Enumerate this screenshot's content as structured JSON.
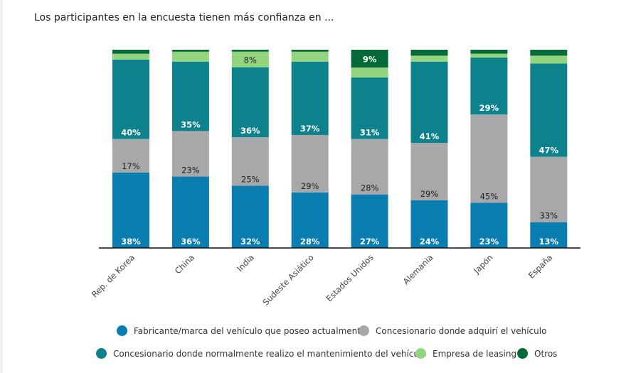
{
  "chart_data": {
    "type": "bar",
    "stacked": true,
    "title": "Los participantes en la encuesta tienen más confianza en ...",
    "categories": [
      "Rep. de Korea",
      "China",
      "India",
      "Sudeste Asiático",
      "Estados Unidos",
      "Alemania",
      "Japón",
      "España"
    ],
    "ylim": [
      0,
      100
    ],
    "unit": "%",
    "grid": false,
    "legend_position": "bottom",
    "series": [
      {
        "name": "Fabricante/marca del vehículo que poseo actualmente",
        "color": "#0a7db0",
        "values": [
          38,
          36,
          32,
          28,
          27,
          24,
          23,
          13
        ],
        "labeled": [
          true,
          true,
          true,
          true,
          true,
          true,
          true,
          true
        ],
        "label_color": "#ffffff"
      },
      {
        "name": "Concesionario donde adquirí el vehículo",
        "color": "#a7a8aa",
        "values": [
          17,
          23,
          25,
          29,
          28,
          29,
          45,
          33
        ],
        "labeled": [
          true,
          true,
          true,
          true,
          true,
          true,
          true,
          true
        ],
        "label_color": "#222222"
      },
      {
        "name": "Concesionario donde normalmente realizo el mantenimiento del vehículo",
        "color": "#0e828c",
        "values": [
          40,
          35,
          36,
          37,
          31,
          41,
          29,
          47
        ],
        "labeled": [
          true,
          true,
          true,
          true,
          true,
          true,
          true,
          true
        ],
        "label_color": "#ffffff"
      },
      {
        "name": "Empresa de leasing",
        "color": "#93d57f",
        "values": [
          3,
          5,
          8,
          5,
          5,
          3,
          2,
          4
        ],
        "labeled": [
          false,
          false,
          true,
          false,
          false,
          false,
          false,
          false
        ],
        "label_color": "#222222"
      },
      {
        "name": "Otros",
        "color": "#046a38",
        "values": [
          2,
          1,
          1,
          1,
          9,
          3,
          2,
          3
        ],
        "labeled": [
          false,
          false,
          false,
          false,
          true,
          false,
          false,
          false
        ],
        "label_color": "#ffffff"
      }
    ]
  }
}
